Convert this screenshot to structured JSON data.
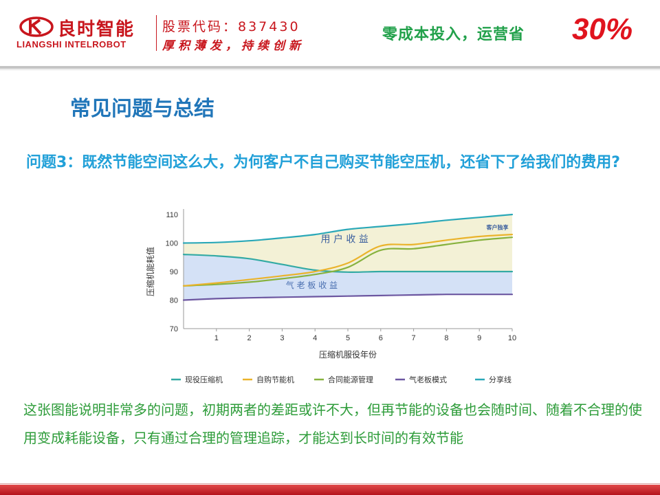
{
  "header": {
    "brand_cn": "良时智能",
    "brand_en": "LIANGSHI INTELROBOT",
    "stock_code": "股票代码：837430",
    "motto": "厚积薄发，持续创新",
    "tagline": "零成本投入，运营省",
    "tagline_pct": "30%"
  },
  "page": {
    "title": "常见问题与总结",
    "question": "问题3：既然节能空间这么大，为何客户不自己购买节能空压机，还省下了给我们的费用?",
    "summary": "这张图能说明非常多的问题，初期两者的差距或许不大，但再节能的设备也会随时间、随着不合理的使用变成耗能设备，只有通过合理的管理追踪，才能达到长时间的有效节能"
  },
  "colors": {
    "brand_red": "#c8161d",
    "title_blue": "#2176b9",
    "question_blue": "#21a0d8",
    "summary_green": "#2e9c3a",
    "tagline_green": "#22a14b"
  },
  "chart_data": {
    "type": "line",
    "xlabel": "压缩机服役年份",
    "ylabel": "压缩机能耗值",
    "x": [
      0,
      1,
      2,
      3,
      4,
      5,
      6,
      7,
      8,
      9,
      10
    ],
    "xticks": [
      "1",
      "2",
      "3",
      "4",
      "5",
      "6",
      "7",
      "8",
      "9",
      "10"
    ],
    "yticks": [
      "70",
      "80",
      "90",
      "100",
      "110"
    ],
    "xlim": [
      0,
      10
    ],
    "ylim": [
      70,
      110
    ],
    "grid": false,
    "legend_position": "bottom",
    "series": [
      {
        "name": "现役压缩机",
        "color": "#33aaa4",
        "values": [
          96,
          95.5,
          94.5,
          92.5,
          90.5,
          89.8,
          90,
          90,
          90,
          90,
          90
        ]
      },
      {
        "name": "自购节能机",
        "color": "#eab32b",
        "values": [
          85,
          86,
          87.2,
          88.5,
          90,
          93,
          99,
          99.5,
          101,
          102.3,
          103
        ]
      },
      {
        "name": "合同能源管理",
        "color": "#87b23e",
        "values": [
          85,
          85.5,
          86.3,
          87.5,
          89,
          91.5,
          97.5,
          98,
          99.5,
          101,
          102
        ]
      },
      {
        "name": "气老板模式",
        "color": "#6c56a0",
        "values": [
          80,
          80.5,
          80.8,
          81,
          81.2,
          81.4,
          81.6,
          81.8,
          82,
          82,
          82
        ]
      },
      {
        "name": "分享线",
        "color": "#2aa8b8",
        "values": [
          100,
          100.2,
          100.8,
          101.8,
          103,
          104.8,
          105.8,
          106.8,
          108,
          109,
          110
        ]
      }
    ],
    "annotations": [
      {
        "text": "用 户 收 益",
        "x": 4.9,
        "y": 100.3
      },
      {
        "text": "气 老 板 收 益",
        "x": 3.9,
        "y": 84.2
      },
      {
        "text": "客户独享",
        "x": 9.55,
        "y": 104.8
      }
    ]
  }
}
